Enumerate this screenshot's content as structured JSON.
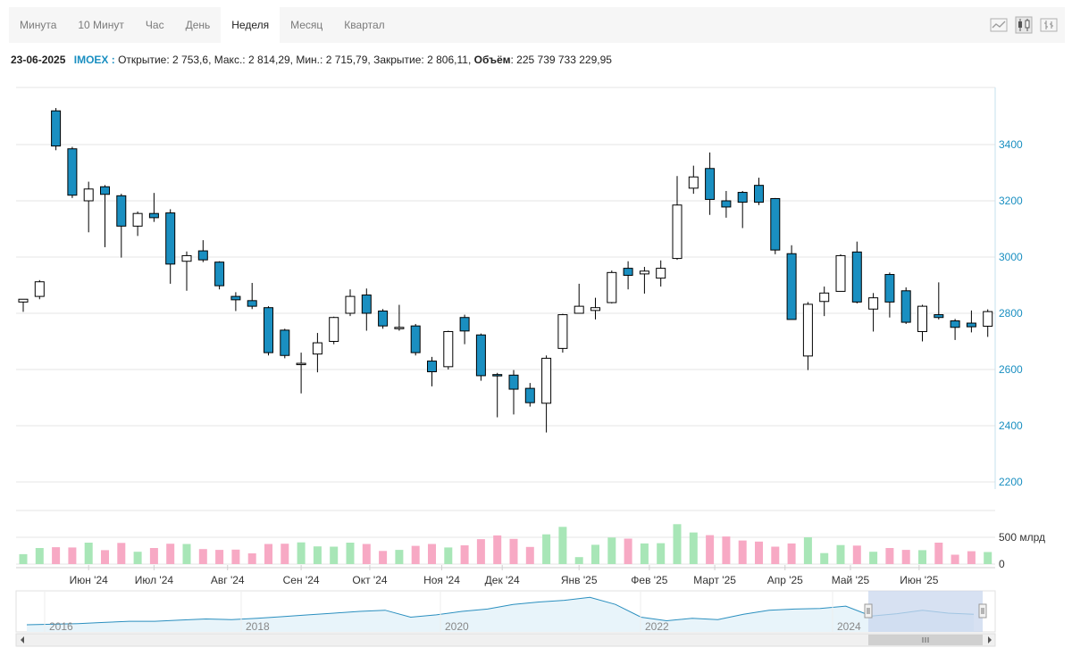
{
  "tabs": [
    {
      "label": "Минута",
      "active": false
    },
    {
      "label": "10 Минут",
      "active": false
    },
    {
      "label": "Час",
      "active": false
    },
    {
      "label": "День",
      "active": false
    },
    {
      "label": "Неделя",
      "active": true
    },
    {
      "label": "Месяц",
      "active": false
    },
    {
      "label": "Квартал",
      "active": false
    }
  ],
  "tools": [
    {
      "name": "line-chart-icon"
    },
    {
      "name": "candlestick-icon"
    },
    {
      "name": "ohlc-bars-icon"
    }
  ],
  "info": {
    "date": "23-06-2025",
    "ticker": "IMOEX",
    "sep": " :",
    "open_label": "Открытие:",
    "open": "2 753,6",
    "high_label": "Макс.:",
    "high": "2 814,29",
    "low_label": "Мин.:",
    "low": "2 715,79",
    "close_label": "Закрытие:",
    "close": "2 806,11",
    "volume_label": "Объём",
    "volume": "225 739 733 229,95"
  },
  "colors": {
    "up_fill": "#ffffff",
    "down_fill": "#1a8fc1",
    "up_volume": "#a8e6b7",
    "down_volume": "#f7a9c4",
    "price_axis": "#1a8fc1",
    "navigator_line": "#2a8fbf",
    "navigator_fill": "#e8f4fa",
    "navigator_window": "#c9d7ee"
  },
  "chart_data": {
    "type": "candlestick",
    "interval": "week",
    "y_ticks": [
      2200,
      2400,
      2600,
      2800,
      3000,
      3200,
      3400
    ],
    "ylim": [
      2200,
      3480
    ],
    "volume_ticks": [
      {
        "value": 0,
        "label": "0"
      },
      {
        "value": 500,
        "label": "500 млрд"
      }
    ],
    "volume_unit": "млрд",
    "x_labels": [
      {
        "label": "Июн '24",
        "at": 4
      },
      {
        "label": "Июл '24",
        "at": 8
      },
      {
        "label": "Авг '24",
        "at": 12.5
      },
      {
        "label": "Сен '24",
        "at": 17
      },
      {
        "label": "Окт '24",
        "at": 21.2
      },
      {
        "label": "Ноя '24",
        "at": 25.6
      },
      {
        "label": "Дек '24",
        "at": 29.3
      },
      {
        "label": "Янв '25",
        "at": 34
      },
      {
        "label": "Фев '25",
        "at": 38.3
      },
      {
        "label": "Март '25",
        "at": 42.3
      },
      {
        "label": "Апр '25",
        "at": 46.6
      },
      {
        "label": "Май '25",
        "at": 50.6
      },
      {
        "label": "Июн '25",
        "at": 54.8
      }
    ],
    "candles": [
      {
        "o": 2840,
        "h": 2850,
        "l": 2805,
        "c": 2850,
        "v": 185
      },
      {
        "o": 2860,
        "h": 2918,
        "l": 2850,
        "c": 2912,
        "v": 300
      },
      {
        "o": 3520,
        "h": 3530,
        "l": 3380,
        "c": 3395,
        "v": 315
      },
      {
        "o": 3385,
        "h": 3392,
        "l": 3210,
        "c": 3220,
        "v": 310
      },
      {
        "o": 3200,
        "h": 3268,
        "l": 3088,
        "c": 3242,
        "v": 400
      },
      {
        "o": 3250,
        "h": 3256,
        "l": 3035,
        "c": 3223,
        "v": 260
      },
      {
        "o": 3218,
        "h": 3225,
        "l": 2998,
        "c": 3110,
        "v": 395
      },
      {
        "o": 3110,
        "h": 3162,
        "l": 3075,
        "c": 3155,
        "v": 230
      },
      {
        "o": 3155,
        "h": 3228,
        "l": 3125,
        "c": 3140,
        "v": 300
      },
      {
        "o": 3157,
        "h": 3170,
        "l": 2905,
        "c": 2975,
        "v": 380
      },
      {
        "o": 2985,
        "h": 3020,
        "l": 2880,
        "c": 3005,
        "v": 375
      },
      {
        "o": 3022,
        "h": 3060,
        "l": 2982,
        "c": 2990,
        "v": 280
      },
      {
        "o": 2982,
        "h": 2985,
        "l": 2885,
        "c": 2898,
        "v": 265
      },
      {
        "o": 2860,
        "h": 2875,
        "l": 2808,
        "c": 2848,
        "v": 270
      },
      {
        "o": 2845,
        "h": 2908,
        "l": 2815,
        "c": 2825,
        "v": 200
      },
      {
        "o": 2820,
        "h": 2825,
        "l": 2650,
        "c": 2660,
        "v": 375
      },
      {
        "o": 2740,
        "h": 2745,
        "l": 2640,
        "c": 2650,
        "v": 380
      },
      {
        "o": 2620,
        "h": 2660,
        "l": 2515,
        "c": 2622,
        "v": 405
      },
      {
        "o": 2655,
        "h": 2730,
        "l": 2590,
        "c": 2695,
        "v": 330
      },
      {
        "o": 2700,
        "h": 2788,
        "l": 2690,
        "c": 2785,
        "v": 325
      },
      {
        "o": 2800,
        "h": 2885,
        "l": 2790,
        "c": 2860,
        "v": 400
      },
      {
        "o": 2865,
        "h": 2888,
        "l": 2738,
        "c": 2800,
        "v": 375
      },
      {
        "o": 2808,
        "h": 2815,
        "l": 2745,
        "c": 2755,
        "v": 245
      },
      {
        "o": 2745,
        "h": 2830,
        "l": 2738,
        "c": 2750,
        "v": 265
      },
      {
        "o": 2755,
        "h": 2762,
        "l": 2650,
        "c": 2660,
        "v": 340
      },
      {
        "o": 2630,
        "h": 2645,
        "l": 2540,
        "c": 2592,
        "v": 375
      },
      {
        "o": 2610,
        "h": 2738,
        "l": 2600,
        "c": 2735,
        "v": 310
      },
      {
        "o": 2785,
        "h": 2795,
        "l": 2690,
        "c": 2737,
        "v": 350
      },
      {
        "o": 2723,
        "h": 2728,
        "l": 2560,
        "c": 2578,
        "v": 465
      },
      {
        "o": 2582,
        "h": 2588,
        "l": 2430,
        "c": 2578,
        "v": 535
      },
      {
        "o": 2580,
        "h": 2598,
        "l": 2440,
        "c": 2530,
        "v": 470
      },
      {
        "o": 2533,
        "h": 2552,
        "l": 2468,
        "c": 2482,
        "v": 320
      },
      {
        "o": 2480,
        "h": 2650,
        "l": 2376,
        "c": 2640,
        "v": 555
      },
      {
        "o": 2675,
        "h": 2798,
        "l": 2660,
        "c": 2795,
        "v": 695
      },
      {
        "o": 2800,
        "h": 2905,
        "l": 2800,
        "c": 2825,
        "v": 130
      },
      {
        "o": 2810,
        "h": 2855,
        "l": 2778,
        "c": 2820,
        "v": 360
      },
      {
        "o": 2838,
        "h": 2952,
        "l": 2835,
        "c": 2945,
        "v": 495
      },
      {
        "o": 2960,
        "h": 2985,
        "l": 2885,
        "c": 2935,
        "v": 475
      },
      {
        "o": 2940,
        "h": 2965,
        "l": 2870,
        "c": 2950,
        "v": 385
      },
      {
        "o": 2925,
        "h": 2988,
        "l": 2895,
        "c": 2960,
        "v": 390
      },
      {
        "o": 2995,
        "h": 3288,
        "l": 2990,
        "c": 3185,
        "v": 745
      },
      {
        "o": 3245,
        "h": 3325,
        "l": 3225,
        "c": 3285,
        "v": 590
      },
      {
        "o": 3315,
        "h": 3372,
        "l": 3150,
        "c": 3205,
        "v": 540
      },
      {
        "o": 3200,
        "h": 3235,
        "l": 3140,
        "c": 3178,
        "v": 515
      },
      {
        "o": 3230,
        "h": 3235,
        "l": 3103,
        "c": 3195,
        "v": 440
      },
      {
        "o": 3255,
        "h": 3282,
        "l": 3185,
        "c": 3195,
        "v": 420
      },
      {
        "o": 3208,
        "h": 3210,
        "l": 3010,
        "c": 3025,
        "v": 325
      },
      {
        "o": 3012,
        "h": 3042,
        "l": 2778,
        "c": 2778,
        "v": 385
      },
      {
        "o": 2648,
        "h": 2840,
        "l": 2598,
        "c": 2832,
        "v": 500
      },
      {
        "o": 2842,
        "h": 2895,
        "l": 2790,
        "c": 2872,
        "v": 205
      },
      {
        "o": 2878,
        "h": 3010,
        "l": 2878,
        "c": 3005,
        "v": 355
      },
      {
        "o": 3018,
        "h": 3055,
        "l": 2835,
        "c": 2840,
        "v": 345
      },
      {
        "o": 2815,
        "h": 2872,
        "l": 2735,
        "c": 2855,
        "v": 230
      },
      {
        "o": 2938,
        "h": 2945,
        "l": 2785,
        "c": 2840,
        "v": 300
      },
      {
        "o": 2880,
        "h": 2892,
        "l": 2762,
        "c": 2768,
        "v": 265
      },
      {
        "o": 2735,
        "h": 2830,
        "l": 2700,
        "c": 2825,
        "v": 260
      },
      {
        "o": 2795,
        "h": 2910,
        "l": 2778,
        "c": 2785,
        "v": 400
      },
      {
        "o": 2773,
        "h": 2780,
        "l": 2705,
        "c": 2750,
        "v": 175
      },
      {
        "o": 2765,
        "h": 2810,
        "l": 2732,
        "c": 2752,
        "v": 240
      },
      {
        "o": 2754,
        "h": 2814,
        "l": 2716,
        "c": 2806,
        "v": 225
      }
    ],
    "navigator": {
      "x_labels": [
        "2016",
        "2018",
        "2020",
        "2022",
        "2024"
      ],
      "series": [
        1850,
        1900,
        1950,
        2050,
        2150,
        2150,
        2250,
        2350,
        2300,
        2400,
        2550,
        2700,
        2850,
        3000,
        3100,
        2500,
        2700,
        3000,
        3200,
        3600,
        3800,
        3950,
        4200,
        3600,
        2500,
        2200,
        2400,
        2300,
        2750,
        3100,
        3200,
        3250,
        3450,
        2600,
        2800,
        3100,
        2850,
        2750
      ]
    }
  }
}
